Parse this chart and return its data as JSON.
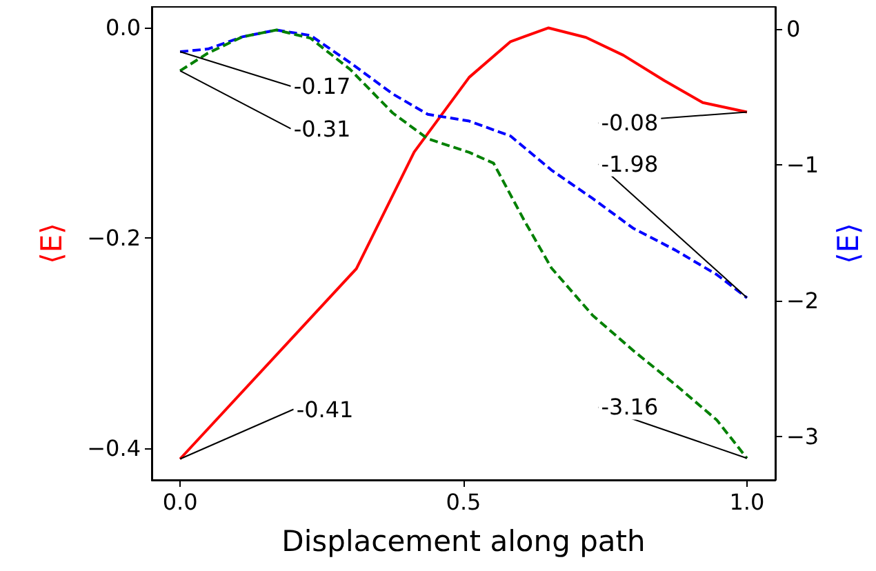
{
  "chart_data": {
    "type": "line",
    "xlabel": "Displacement along path",
    "ylabel": "⟨E⟩",
    "y2label": "⟨E⟩",
    "xlim": [
      -0.05,
      1.05
    ],
    "xticks": [
      {
        "value": 0,
        "label": "0.0"
      },
      {
        "value": 0.5,
        "label": "0.5"
      },
      {
        "value": 1,
        "label": "1.0"
      }
    ],
    "ylim": [
      -0.43,
      0.02
    ],
    "yticks": [
      {
        "value": 0,
        "label": "0.0"
      },
      {
        "value": -0.2,
        "label": "−0.2"
      },
      {
        "value": -0.4,
        "label": "−0.4"
      }
    ],
    "y2lim": [
      -3.32,
      0.16
    ],
    "y2ticks": [
      0,
      {
        "value": -1,
        "label": "−1"
      },
      {
        "value": -2,
        "label": "−2"
      },
      {
        "value": -3,
        "label": "−3"
      }
    ],
    "grid": false,
    "marker": "none",
    "series": [
      {
        "color": "#ff0000",
        "line_style": "solid",
        "x": [
          0,
          0.311,
          0.413,
          0.51,
          0.583,
          0.65,
          0.716,
          0.782,
          0.854,
          0.922,
          1.0
        ],
        "values": [
          -0.41,
          -0.229,
          -0.118,
          -0.047,
          -0.013,
          0.0,
          -0.009,
          -0.026,
          -0.05,
          -0.071,
          -0.08
        ],
        "value_labels": [
          "-0.41",
          null,
          null,
          null,
          null,
          null,
          null,
          null,
          null,
          null,
          "-0.08"
        ]
      },
      {
        "color": "#0000ff",
        "line_style": "dashed",
        "axis": "y2",
        "x": [
          0,
          0.049,
          0.11,
          0.17,
          0.23,
          0.3,
          0.375,
          0.437,
          0.51,
          0.583,
          0.655,
          0.728,
          0.8,
          0.874,
          0.947,
          1.0
        ],
        "values": [
          -0.17,
          -0.15,
          -0.06,
          -0.01,
          -0.05,
          -0.25,
          -0.48,
          -0.63,
          -0.68,
          -0.79,
          -1.04,
          -1.25,
          -1.47,
          -1.63,
          -1.81,
          -1.98
        ],
        "value_labels": [
          "-0.17",
          null,
          null,
          null,
          null,
          null,
          null,
          null,
          null,
          null,
          null,
          null,
          null,
          null,
          null,
          "-1.98"
        ]
      },
      {
        "color": "#008000",
        "line_style": "dashed",
        "axis": "y2",
        "x": [
          0,
          0.049,
          0.11,
          0.17,
          0.23,
          0.3,
          0.375,
          0.437,
          0.51,
          0.553,
          0.607,
          0.655,
          0.728,
          0.8,
          0.874,
          0.947,
          1.0
        ],
        "values": [
          -0.31,
          -0.18,
          -0.06,
          -0.01,
          -0.07,
          -0.3,
          -0.62,
          -0.81,
          -0.91,
          -0.99,
          -1.41,
          -1.76,
          -2.11,
          -2.37,
          -2.62,
          -2.88,
          -3.16
        ],
        "value_labels": [
          "-0.31",
          null,
          null,
          null,
          null,
          null,
          null,
          null,
          null,
          null,
          null,
          null,
          null,
          null,
          null,
          null,
          "-3.16"
        ]
      }
    ]
  }
}
